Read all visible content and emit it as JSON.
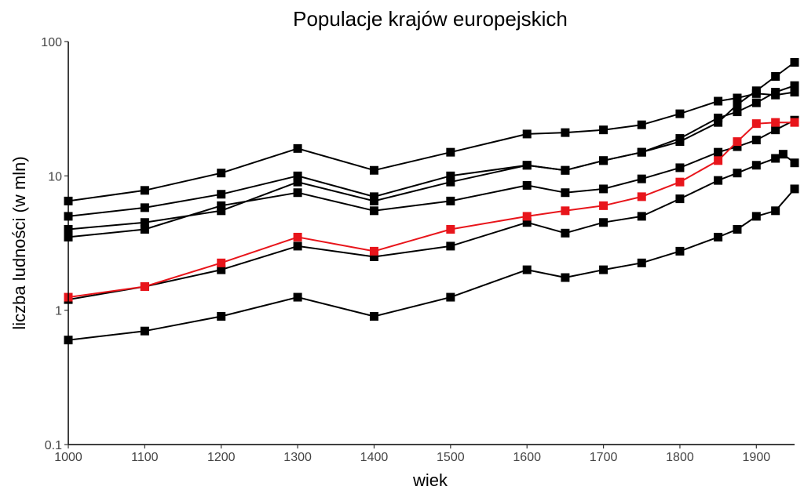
{
  "chart_data": {
    "type": "line",
    "title": "Populacje krajów europejskich",
    "xlabel": "wiek",
    "ylabel": "liczba ludności (w mln)",
    "xlim": [
      1000,
      1950
    ],
    "ylim": [
      0.1,
      100
    ],
    "y_scale": "log",
    "grid": false,
    "x_ticks": [
      1000,
      1100,
      1200,
      1300,
      1400,
      1500,
      1600,
      1700,
      1800,
      1900
    ],
    "y_ticks": [
      {
        "value": 0.1,
        "label": "0.1"
      },
      {
        "value": 1,
        "label": "1"
      },
      {
        "value": 10,
        "label": "10"
      },
      {
        "value": 100,
        "label": "100"
      }
    ],
    "series": [
      {
        "color": "#000000",
        "x": [
          1000,
          1100,
          1200,
          1300,
          1400,
          1500,
          1600,
          1650,
          1700,
          1750,
          1800,
          1850,
          1875,
          1900,
          1925,
          1950
        ],
        "y": [
          6.5,
          7.8,
          10.5,
          16,
          11,
          15,
          20.5,
          21,
          22,
          24,
          29,
          36,
          38,
          41,
          40,
          42
        ]
      },
      {
        "color": "#000000",
        "x": [
          1000,
          1100,
          1200,
          1300,
          1400,
          1500,
          1600,
          1650,
          1700,
          1750,
          1800,
          1850,
          1875,
          1900,
          1925,
          1950
        ],
        "y": [
          5,
          5.8,
          7.3,
          10,
          7,
          10,
          12,
          11,
          13,
          15,
          18,
          25,
          34,
          43,
          55,
          70
        ]
      },
      {
        "color": "#000000",
        "x": [
          1000,
          1100,
          1200,
          1300,
          1400,
          1500,
          1600,
          1650,
          1700,
          1750,
          1800,
          1850,
          1875,
          1900,
          1925,
          1950
        ],
        "y": [
          4,
          4.5,
          5.5,
          9,
          6.5,
          9,
          12,
          11,
          13,
          15,
          19,
          27,
          30,
          35,
          42,
          47
        ]
      },
      {
        "color": "#000000",
        "x": [
          1000,
          1100,
          1200,
          1300,
          1400,
          1500,
          1600,
          1650,
          1700,
          1750,
          1800,
          1850,
          1875,
          1900,
          1925,
          1950
        ],
        "y": [
          3.5,
          4,
          6,
          7.5,
          5.5,
          6.5,
          8.5,
          7.5,
          8,
          9.5,
          11.5,
          15,
          16.5,
          18.5,
          22,
          26
        ]
      },
      {
        "color": "#e8151b",
        "x": [
          1000,
          1100,
          1200,
          1300,
          1400,
          1500,
          1600,
          1650,
          1700,
          1750,
          1800,
          1850,
          1875,
          1900,
          1925,
          1950
        ],
        "y": [
          1.25,
          1.5,
          2.25,
          3.5,
          2.75,
          4,
          5,
          5.5,
          6,
          7,
          9,
          13,
          18,
          24.5,
          25,
          25
        ]
      },
      {
        "color": "#000000",
        "x": [
          1000,
          1100,
          1200,
          1300,
          1400,
          1500,
          1600,
          1650,
          1700,
          1750,
          1800,
          1850,
          1875,
          1900,
          1925,
          1935,
          1950
        ],
        "y": [
          1.2,
          1.5,
          2,
          3,
          2.5,
          3,
          4.5,
          3.75,
          4.5,
          5,
          6.75,
          9.25,
          10.5,
          12,
          13.5,
          14.5,
          12.5
        ]
      },
      {
        "color": "#000000",
        "x": [
          1000,
          1100,
          1200,
          1300,
          1400,
          1500,
          1600,
          1650,
          1700,
          1750,
          1800,
          1850,
          1875,
          1900,
          1925,
          1950
        ],
        "y": [
          0.6,
          0.7,
          0.9,
          1.25,
          0.9,
          1.25,
          2,
          1.75,
          2,
          2.25,
          2.75,
          3.5,
          4,
          5,
          5.5,
          8
        ]
      }
    ]
  }
}
